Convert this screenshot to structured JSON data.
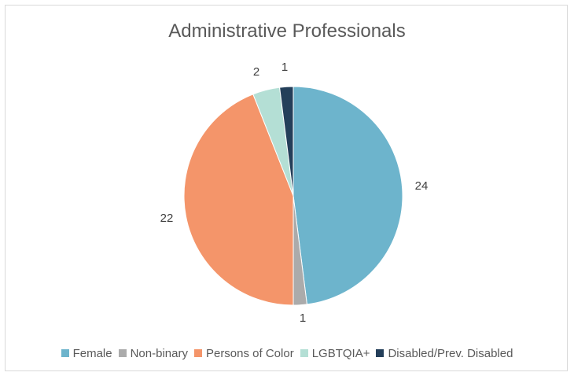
{
  "chart_data": {
    "type": "pie",
    "title": "Administrative Professionals",
    "categories": [
      "Female",
      "Non-binary",
      "Persons of Color",
      "LGBTQIA+",
      "Disabled/Prev. Disabled"
    ],
    "values": [
      24,
      1,
      22,
      2,
      1
    ],
    "colors": [
      "#6db4cc",
      "#ababab",
      "#f4956a",
      "#b4dfd5",
      "#243f5a"
    ],
    "data_labels": [
      "24",
      "1",
      "22",
      "2",
      "1"
    ],
    "legend_position": "bottom"
  }
}
